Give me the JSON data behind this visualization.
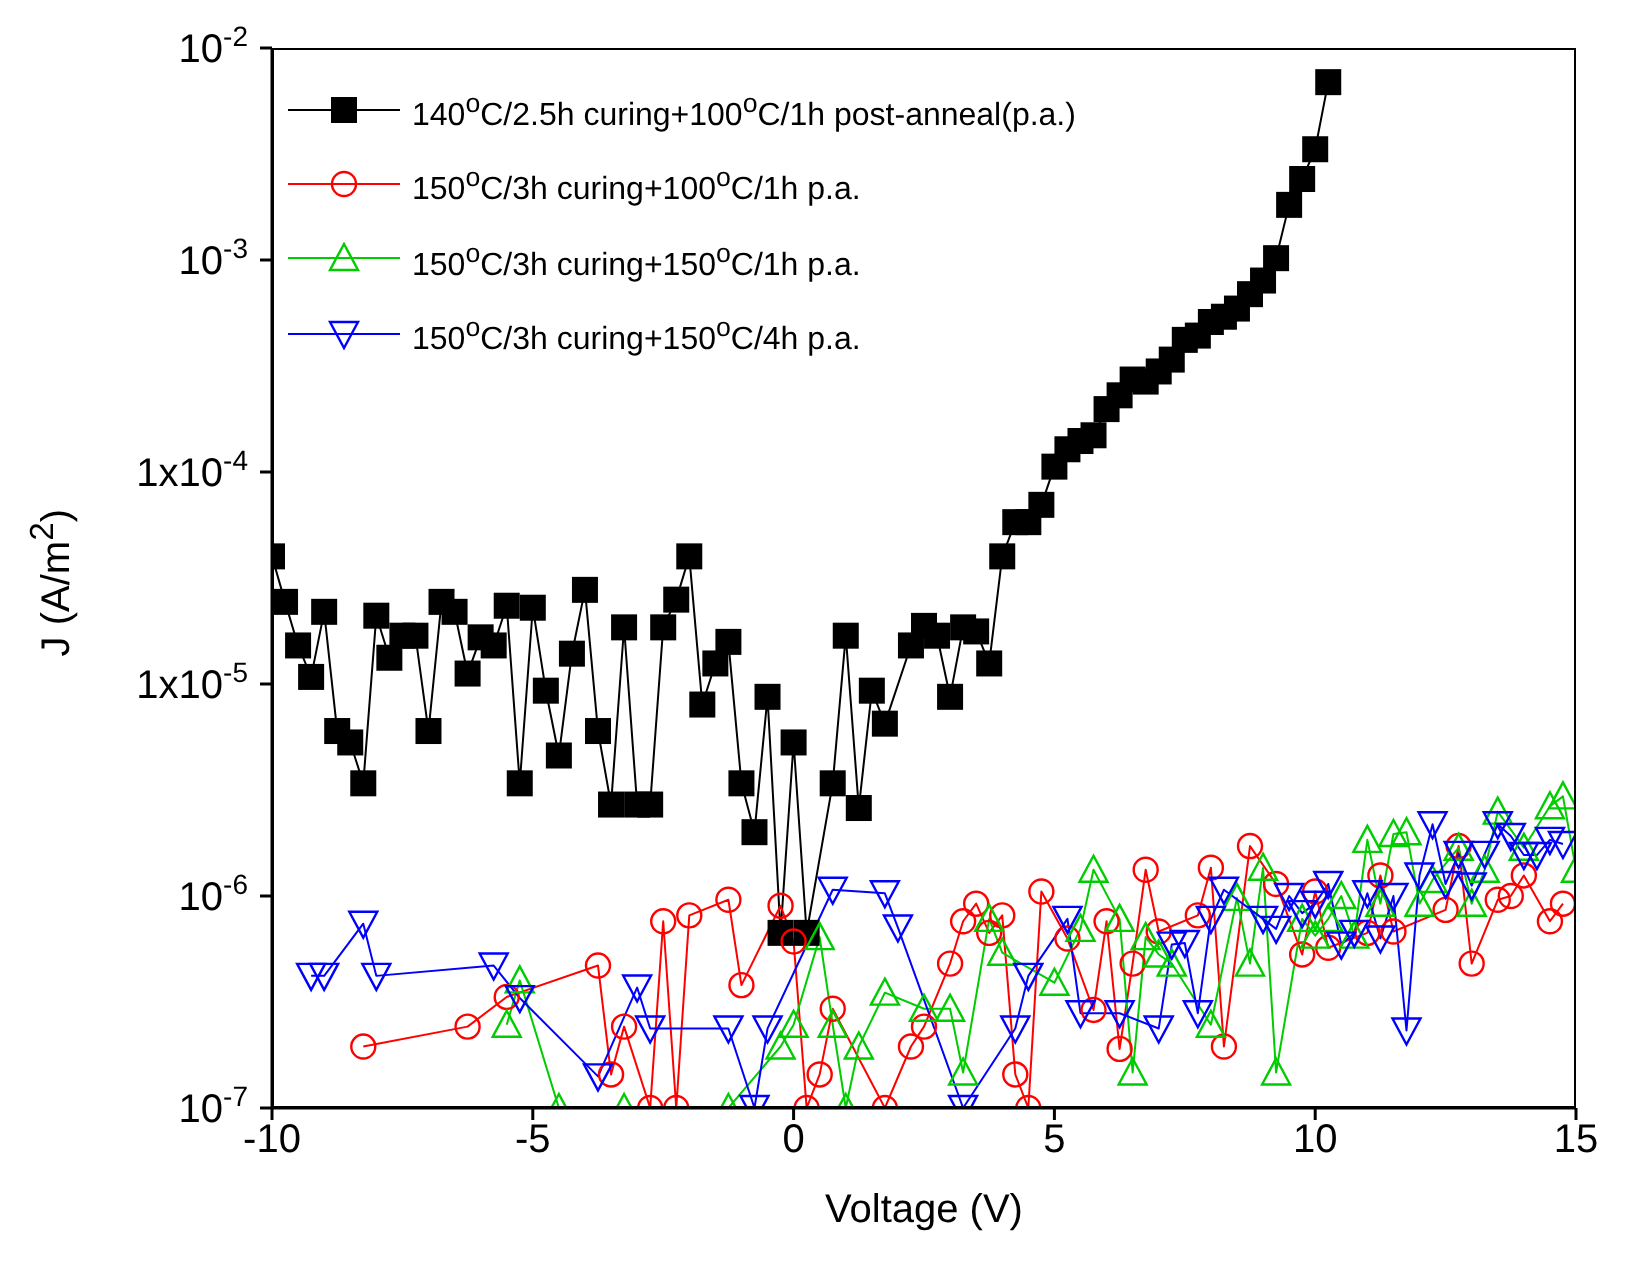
{
  "chart_data": {
    "type": "line",
    "xlabel": "Voltage (V)",
    "ylabel": "J (A/m$^{2}$)",
    "log": "y",
    "grid": false,
    "legend": "top left",
    "xlim": [
      -10,
      15
    ],
    "xticks": [
      -10,
      -5,
      0,
      5,
      10,
      15
    ],
    "ylim": [
      1e-07,
      0.01
    ],
    "yticks": [
      {
        "value": 1e-07,
        "label": "10$^{-7}$"
      },
      {
        "value": 1e-06,
        "label": "10$^{-6}$"
      },
      {
        "value": 1e-05,
        "label": "1x10$^{-5}$"
      },
      {
        "value": 0.0001,
        "label": "1x10$^{-4}$"
      },
      {
        "value": 0.001,
        "label": "10$^{-3}$"
      },
      {
        "value": 0.01,
        "label": "10$^{-2}$"
      }
    ],
    "series": [
      {
        "name": "140$^{o}$C/2.5h curing+100$^{o}$C/1h post-anneal(p.a.)",
        "color": "#000000",
        "marker": "square",
        "line_style": "solid",
        "x": [
          -10,
          -9.75,
          -9.5,
          -9.25,
          -9,
          -8.75,
          -8.5,
          -8.25,
          -8,
          -7.75,
          -7.5,
          -7.25,
          -7,
          -6.75,
          -6.5,
          -6.25,
          -6,
          -5.75,
          -5.5,
          -5.25,
          -5,
          -4.75,
          -4.5,
          -4.25,
          -4,
          -3.75,
          -3.5,
          -3.25,
          -3,
          -2.75,
          -2.5,
          -2.25,
          -2,
          -1.75,
          -1.5,
          -1.25,
          -1,
          -0.75,
          -0.5,
          -0.25,
          0,
          0.25,
          0.75,
          1,
          1.25,
          1.5,
          1.75,
          2.25,
          2.5,
          2.75,
          3,
          3.25,
          3.5,
          3.75,
          4,
          4.25,
          4.5,
          4.75,
          5,
          5.25,
          5.5,
          5.75,
          6,
          6.25,
          6.5,
          6.75,
          7,
          7.25,
          7.5,
          7.75,
          8,
          8.25,
          8.5,
          8.75,
          9,
          9.25,
          9.5,
          9.75,
          10,
          10.25
        ],
        "values": [
          4e-05,
          2.44e-05,
          1.52e-05,
          1.08e-05,
          2.19e-05,
          6e-06,
          5.3e-06,
          3.4e-06,
          2.1e-05,
          1.33e-05,
          1.69e-05,
          1.69e-05,
          6e-06,
          2.44e-05,
          2.19e-05,
          1.12e-05,
          1.66e-05,
          1.52e-05,
          2.34e-05,
          3.4e-06,
          2.29e-05,
          9.3e-06,
          4.6e-06,
          1.39e-05,
          2.78e-05,
          6e-06,
          2.7e-06,
          1.85e-05,
          2.7e-06,
          2.7e-06,
          1.85e-05,
          2.5e-05,
          4e-05,
          8e-06,
          1.25e-05,
          1.58e-05,
          3.4e-06,
          2e-06,
          8.7e-06,
          6.7e-07,
          5.3e-06,
          6.7e-07,
          3.4e-06,
          1.69e-05,
          2.6e-06,
          9.3e-06,
          6.5e-06,
          1.52e-05,
          1.88e-05,
          1.69e-05,
          8.7e-06,
          1.85e-05,
          1.77e-05,
          1.25e-05,
          4e-05,
          5.8e-05,
          5.8e-05,
          7e-05,
          0.000106,
          0.000128,
          0.00014,
          0.000149,
          0.000198,
          0.00023,
          0.000273,
          0.000267,
          0.000298,
          0.000339,
          0.00042,
          0.00044,
          0.00051,
          0.00054,
          0.00059,
          0.00069,
          0.0008,
          0.00102,
          0.00182,
          0.00241,
          0.00333,
          0.0069
        ]
      },
      {
        "name": "150$^{o}$C/3h curing+100$^{o}$C/1h p.a.",
        "color": "#ff0000",
        "marker": "circle",
        "line_style": "solid",
        "x": [
          -8.25,
          -6.25,
          -5.5,
          -3.75,
          -3.5,
          -3.25,
          -2.75,
          -2.5,
          -2.25,
          -2,
          -1.25,
          -1,
          -0.25,
          0,
          0.25,
          0.5,
          0.75,
          1.75,
          2.25,
          2.5,
          3,
          3.25,
          3.5,
          3.75,
          4,
          4.25,
          4.5,
          4.75,
          5.25,
          5.75,
          6,
          6.25,
          6.5,
          6.75,
          7,
          7.75,
          8,
          8.25,
          8.75,
          9.25,
          9.75,
          10,
          10.25,
          11,
          11.25,
          11.5,
          12.5,
          12.75,
          13,
          13.5,
          13.75,
          14,
          14.5,
          14.75
        ],
        "values": [
          1.95e-07,
          2.42e-07,
          3.34e-07,
          4.7e-07,
          1.44e-07,
          2.42e-07,
          1e-07,
          7.6e-07,
          1e-07,
          8.1e-07,
          9.6e-07,
          3.8e-07,
          9e-07,
          6.1e-07,
          1e-07,
          1.44e-07,
          2.94e-07,
          1e-07,
          1.95e-07,
          2.42e-07,
          4.8e-07,
          7.6e-07,
          9.2e-07,
          6.7e-07,
          8.1e-07,
          1.44e-07,
          1e-07,
          1.05e-06,
          6.3e-07,
          2.9e-07,
          7.6e-07,
          1.9e-07,
          4.8e-07,
          1.33e-06,
          6.8e-07,
          8.1e-07,
          1.36e-06,
          1.95e-07,
          1.72e-06,
          1.14e-06,
          5.3e-07,
          1.05e-06,
          5.7e-07,
          6.7e-07,
          1.25e-06,
          6.8e-07,
          8.6e-07,
          1.72e-06,
          4.8e-07,
          9.6e-07,
          1e-06,
          1.25e-06,
          7.6e-07,
          9.2e-07
        ]
      },
      {
        "name": "150$^{o}$C/3h curing+150$^{o}$C/1h p.a.",
        "color": "#00cc00",
        "marker": "triangle",
        "line_style": "solid",
        "x": [
          -5.5,
          -5.25,
          -4.5,
          -3.25,
          -1.25,
          -0.25,
          0,
          0.5,
          0.75,
          1,
          1.25,
          1.75,
          2.5,
          3,
          3.25,
          3.75,
          4,
          5,
          5.5,
          5.75,
          6.25,
          6.5,
          6.75,
          7,
          7.25,
          8,
          8.5,
          8.75,
          9,
          9.25,
          9.75,
          10,
          10.25,
          10.5,
          10.75,
          11,
          11.25,
          11.5,
          11.75,
          12,
          12.25,
          12.75,
          13,
          13.25,
          13.5,
          14,
          14.5,
          14.75,
          15
        ],
        "values": [
          2.47e-07,
          4e-07,
          1e-07,
          1e-07,
          1e-07,
          1.95e-07,
          2.47e-07,
          6.4e-07,
          2.47e-07,
          1e-07,
          1.95e-07,
          3.5e-07,
          2.94e-07,
          2.94e-07,
          1.47e-07,
          7.8e-07,
          5.4e-07,
          3.9e-07,
          7e-07,
          1.33e-06,
          7.8e-07,
          1.47e-07,
          6.4e-07,
          5.3e-07,
          4.8e-07,
          2.47e-07,
          9.8e-07,
          4.8e-07,
          1.36e-06,
          1.47e-07,
          7.8e-07,
          6.5e-07,
          7.8e-07,
          1e-06,
          6.5e-07,
          1.84e-06,
          9.2e-07,
          1.96e-06,
          2e-06,
          9.2e-07,
          1.19e-06,
          1.69e-06,
          9.2e-07,
          1.33e-06,
          2.5e-06,
          1.69e-06,
          2.65e-06,
          2.95e-06,
          1.33e-06
        ]
      },
      {
        "name": "150$^{o}$C/3h curing+150$^{o}$C/4h p.a.",
        "color": "#0000ff",
        "marker": "triangle-down",
        "line_style": "solid",
        "x": [
          -9.25,
          -9,
          -8.25,
          -8,
          -5.75,
          -5.25,
          -3.75,
          -3,
          -2.75,
          -1.25,
          -0.75,
          -0.5,
          0.75,
          1.75,
          2,
          3.25,
          4.25,
          4.5,
          5.25,
          5.5,
          6.25,
          7,
          7.25,
          7.5,
          7.75,
          8,
          8.25,
          9,
          9.25,
          9.5,
          9.75,
          10,
          10.25,
          10.5,
          10.75,
          11,
          11.25,
          11.5,
          11.75,
          12,
          12.25,
          12.5,
          12.75,
          13,
          13.25,
          13.5,
          13.75,
          14,
          14.25,
          14.5,
          14.75
        ],
        "values": [
          4.2e-07,
          4.2e-07,
          7.4e-07,
          4.2e-07,
          4.7e-07,
          3.3e-07,
          1.41e-07,
          3.7e-07,
          2.37e-07,
          2.37e-07,
          1e-07,
          2.37e-07,
          1.07e-06,
          1.03e-06,
          7.1e-07,
          1e-07,
          2.37e-07,
          4.2e-07,
          7.8e-07,
          2.8e-07,
          2.8e-07,
          2.37e-07,
          5.9e-07,
          6e-07,
          2.8e-07,
          7.8e-07,
          1.07e-06,
          7.8e-07,
          7e-07,
          1e-06,
          8.3e-07,
          9.2e-07,
          1.14e-06,
          5.9e-07,
          6.7e-07,
          1.03e-06,
          6.3e-07,
          1e-06,
          2.32e-07,
          1.25e-06,
          2.18e-06,
          1.14e-06,
          1.58e-06,
          1.12e-06,
          1.58e-06,
          2.18e-06,
          1.92e-06,
          1.56e-06,
          1.56e-06,
          1.84e-06,
          1.76e-06
        ]
      }
    ]
  }
}
